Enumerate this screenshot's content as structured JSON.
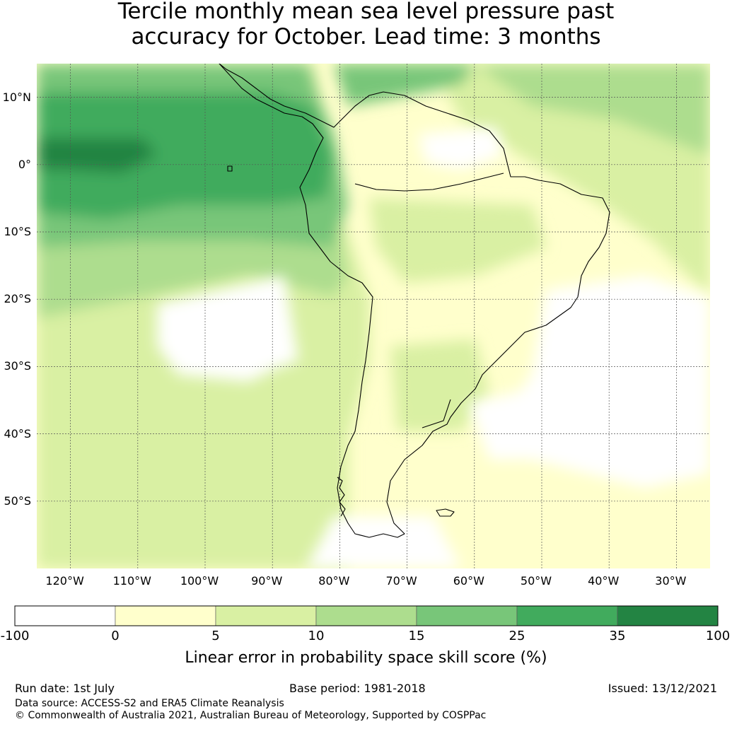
{
  "title_line1": "Tercile monthly mean sea level pressure past",
  "title_line2": "accuracy for October. Lead time: 3 months",
  "map": {
    "lon_range": [
      -125,
      -25
    ],
    "lat_range": [
      -60,
      15
    ],
    "lat_labels": [
      {
        "value": 10,
        "label": "10°N"
      },
      {
        "value": 0,
        "label": "0°"
      },
      {
        "value": -10,
        "label": "10°S"
      },
      {
        "value": -20,
        "label": "20°S"
      },
      {
        "value": -30,
        "label": "30°S"
      },
      {
        "value": -40,
        "label": "40°S"
      },
      {
        "value": -50,
        "label": "50°S"
      }
    ],
    "lon_labels": [
      {
        "value": -120,
        "label": "120°W"
      },
      {
        "value": -110,
        "label": "110°W"
      },
      {
        "value": -100,
        "label": "100°W"
      },
      {
        "value": -90,
        "label": "90°W"
      },
      {
        "value": -80,
        "label": "80°W"
      },
      {
        "value": -70,
        "label": "70°W"
      },
      {
        "value": -60,
        "label": "60°W"
      },
      {
        "value": -50,
        "label": "50°W"
      },
      {
        "value": -40,
        "label": "40°W"
      },
      {
        "value": -30,
        "label": "30°W"
      }
    ],
    "gridlines": true,
    "coastline_color": "#000000"
  },
  "colorbar": {
    "ticks": [
      "-100",
      "0",
      "5",
      "10",
      "15",
      "25",
      "35",
      "100"
    ],
    "colors": [
      "#ffffff",
      "#ffffcc",
      "#d9f0a3",
      "#addd8e",
      "#78c679",
      "#41ab5d",
      "#238443"
    ],
    "label": "Linear error in probability space skill score (%)"
  },
  "footer": {
    "run_date": "Run date: 1st July",
    "base_period": "Base period: 1981-2018",
    "issued": "Issued: 13/12/2021",
    "data_source": "Data source: ACCESS-S2 and ERA5 Climate Reanalysis",
    "copyright": "© Commonwealth of Australia 2021, Australian Bureau of Meteorology, Supported by COSPPac"
  }
}
